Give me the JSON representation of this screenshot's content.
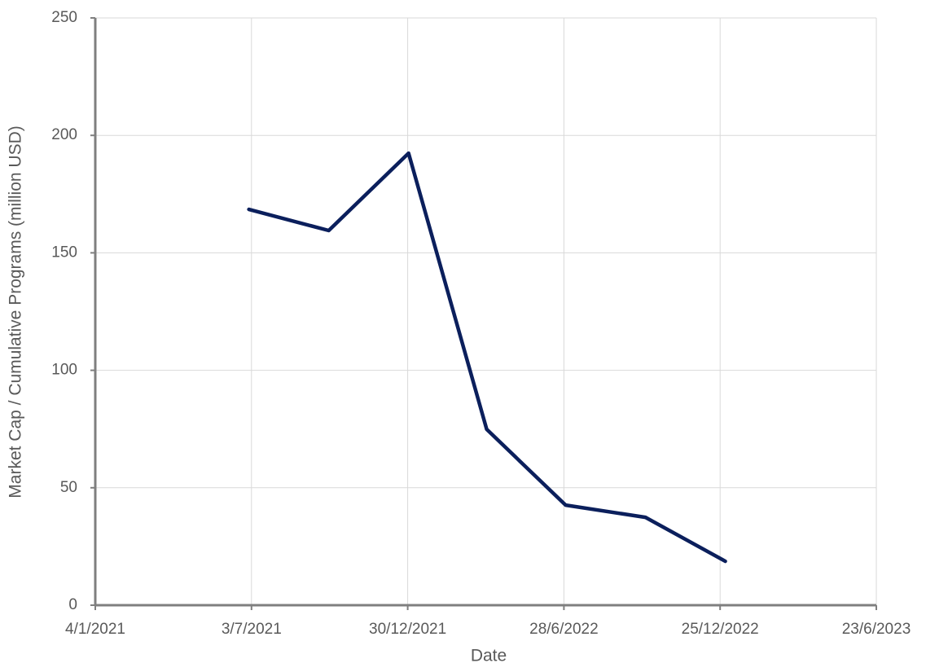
{
  "chart_data": {
    "type": "line",
    "x_label": "Date",
    "y_label": "Market Cap / Cumulative Programs (million USD)",
    "x": [
      "2021-06-30",
      "2021-09-30",
      "2021-12-31",
      "2022-03-31",
      "2022-06-30",
      "2022-09-30",
      "2022-12-31"
    ],
    "series": [
      {
        "color": "#0b1f5c",
        "values": [
          168.5,
          159.5,
          192.4,
          74.9,
          42.6,
          37.4,
          18.7
        ]
      }
    ],
    "xlim": [
      "2021-01-04",
      "2023-06-23"
    ],
    "xticks": [
      {
        "value": "2021-01-04",
        "label": "4/1/2021"
      },
      {
        "value": "2021-07-03",
        "label": "3/7/2021"
      },
      {
        "value": "2021-12-30",
        "label": "30/12/2021"
      },
      {
        "value": "2022-06-28",
        "label": "28/6/2022"
      },
      {
        "value": "2022-12-25",
        "label": "25/12/2022"
      },
      {
        "value": "2023-06-23",
        "label": "23/6/2023"
      }
    ],
    "ylim": [
      0,
      250
    ],
    "yticks": [
      0,
      50,
      100,
      150,
      200,
      250
    ],
    "grid": true
  }
}
